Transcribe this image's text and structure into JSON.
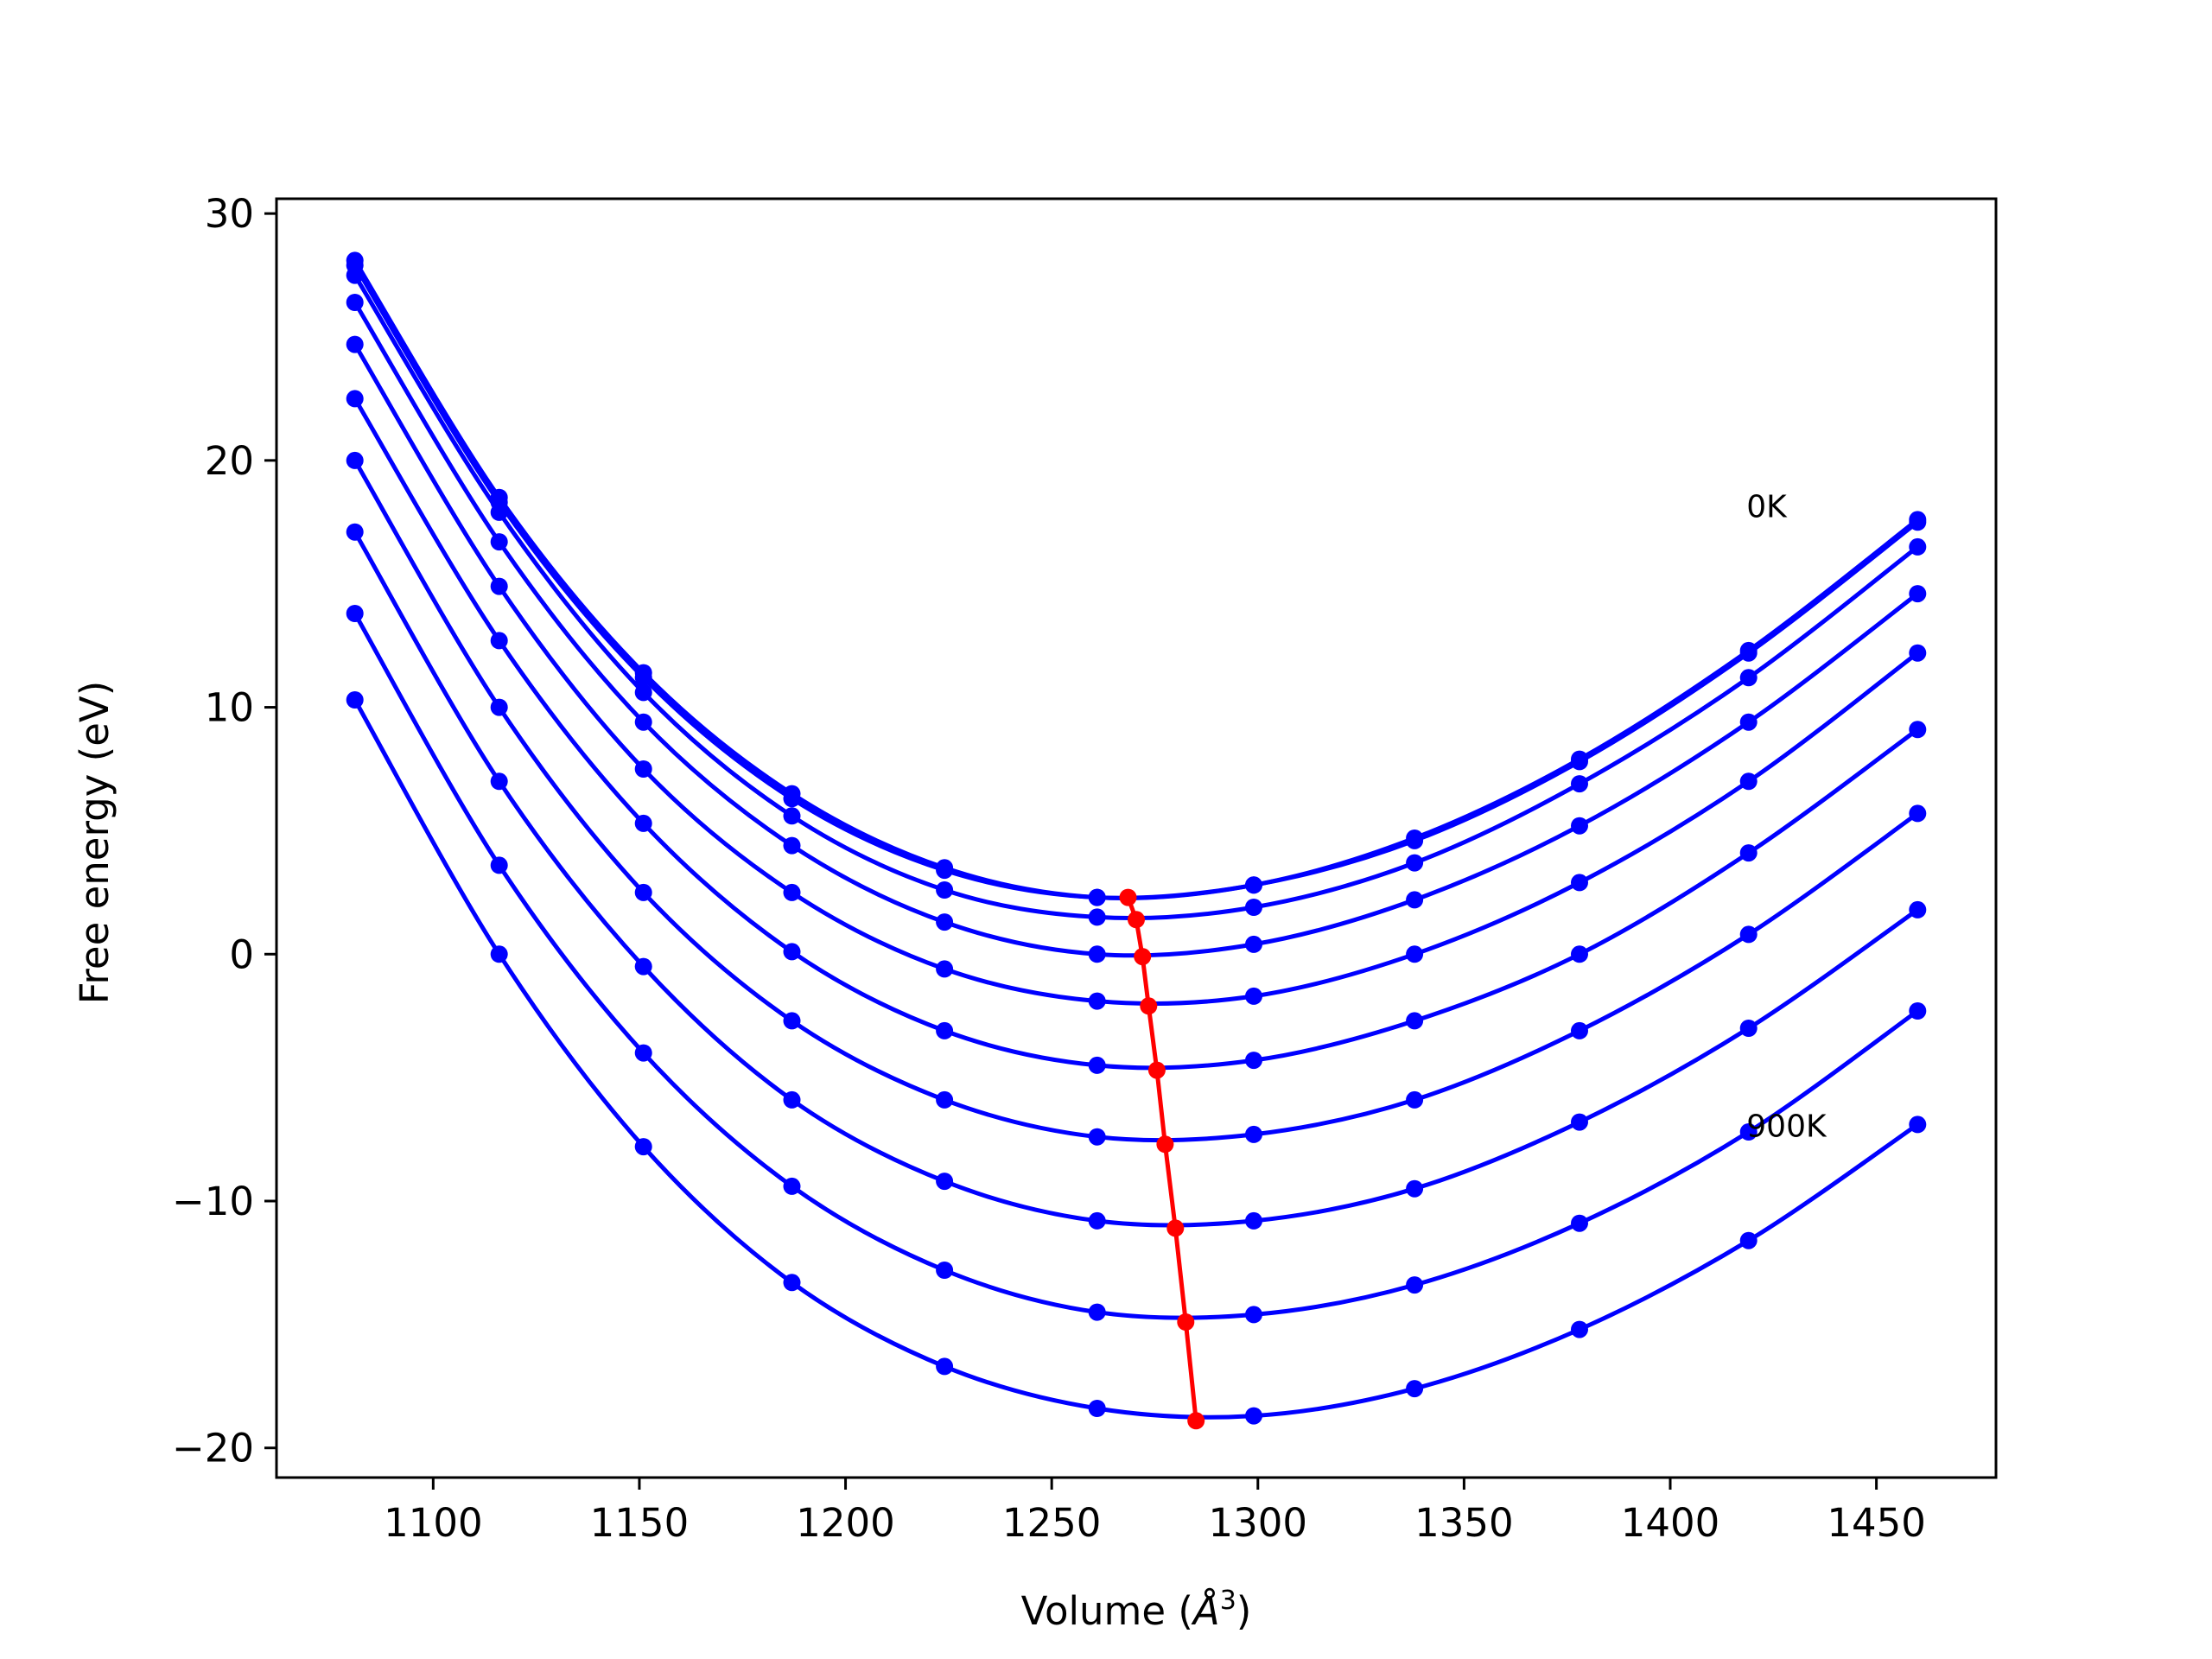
{
  "chart_data": {
    "type": "line",
    "xlabel_prefix": "Volume (",
    "xlabel_unit": "Å",
    "xlabel_exp": "3",
    "xlabel_suffix": ")",
    "ylabel": "Free energy (eV)",
    "xlim": [
      1062,
      1479
    ],
    "ylim": [
      -21.2,
      30.6
    ],
    "x_ticks": [
      1100,
      1150,
      1200,
      1250,
      1300,
      1350,
      1400,
      1450
    ],
    "y_ticks": [
      -20,
      -10,
      0,
      10,
      20,
      30
    ],
    "y_tick_labels": [
      "−20",
      "−10",
      "0",
      "10",
      "20",
      "30"
    ],
    "grid": false,
    "colors": {
      "curves": "#0000ff",
      "minimum_path": "#ff0000"
    },
    "x": [
      1081,
      1116,
      1151,
      1187,
      1224,
      1261,
      1299,
      1338,
      1378,
      1419,
      1460
    ],
    "series": [
      {
        "values": [
          28.1,
          18.5,
          11.4,
          6.5,
          3.5,
          2.3,
          2.8,
          4.7,
          7.9,
          12.3,
          17.6
        ]
      },
      {
        "values": [
          27.9,
          18.3,
          11.2,
          6.3,
          3.4,
          2.3,
          2.8,
          4.6,
          7.8,
          12.2,
          17.5
        ]
      },
      {
        "values": [
          27.5,
          17.9,
          10.6,
          5.6,
          2.6,
          1.5,
          1.9,
          3.7,
          6.9,
          11.2,
          16.5
        ]
      },
      {
        "values": [
          26.4,
          16.7,
          9.4,
          4.4,
          1.3,
          0.0,
          0.4,
          2.2,
          5.2,
          9.4,
          14.6
        ]
      },
      {
        "values": [
          24.7,
          14.9,
          7.5,
          2.5,
          -0.6,
          -1.9,
          -1.7,
          0.0,
          2.9,
          7.0,
          12.2
        ]
      },
      {
        "values": [
          22.5,
          12.7,
          5.3,
          0.1,
          -3.1,
          -4.5,
          -4.3,
          -2.7,
          0.0,
          4.1,
          9.1
        ]
      },
      {
        "values": [
          20.0,
          10.0,
          2.5,
          -2.7,
          -5.9,
          -7.4,
          -7.3,
          -5.9,
          -3.1,
          0.8,
          5.7
        ]
      },
      {
        "values": [
          17.1,
          7.0,
          -0.5,
          -5.9,
          -9.2,
          -10.8,
          -10.8,
          -9.5,
          -6.8,
          -3.0,
          1.8
        ]
      },
      {
        "values": [
          13.8,
          3.6,
          -4.0,
          -9.4,
          -12.8,
          -14.5,
          -14.6,
          -13.4,
          -10.9,
          -7.2,
          -2.3
        ]
      },
      {
        "values": [
          10.3,
          0.0,
          -7.8,
          -13.3,
          -16.7,
          -18.4,
          -18.7,
          -17.6,
          -15.2,
          -11.6,
          -6.9
        ]
      }
    ],
    "minimum_path": {
      "x": [
        1268.5,
        1270.5,
        1272.0,
        1273.5,
        1275.5,
        1277.5,
        1280.0,
        1282.5,
        1285.0
      ],
      "y": [
        2.3,
        1.4,
        -0.1,
        -2.1,
        -4.7,
        -7.7,
        -11.1,
        -14.9,
        -18.9
      ]
    },
    "annotations": [
      {
        "text": "0K",
        "x": 1418.5,
        "y": 17.7
      },
      {
        "text": "900K",
        "x": 1418.5,
        "y": -7.4
      }
    ]
  }
}
